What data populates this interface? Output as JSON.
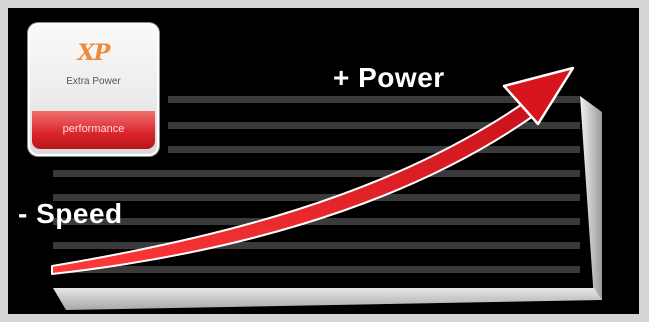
{
  "badge": {
    "logo_text": "XP",
    "name": "Extra Power",
    "bar_text": "performance"
  },
  "labels": {
    "power": "+ Power",
    "speed": "- Speed"
  },
  "colors": {
    "page_border": "#d4d4d4",
    "background": "#000000",
    "stripe": "#3c3c3c",
    "arrow": "#e11b22",
    "arrow_outline": "#ffffff",
    "badge_red": "#d9252a",
    "logo_orange": "#f08a3a"
  }
}
